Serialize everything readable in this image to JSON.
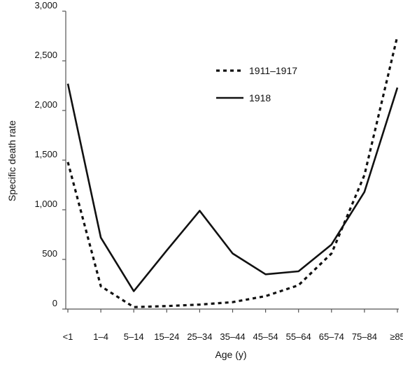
{
  "chart_data": {
    "type": "line",
    "xlabel": "Age (y)",
    "ylabel": "Specific death rate",
    "categories": [
      "<1",
      "1–4",
      "5–14",
      "15–24",
      "25–34",
      "35–44",
      "45–54",
      "55–64",
      "65–74",
      "75–84",
      "≥85"
    ],
    "ylim": [
      0,
      3000
    ],
    "yticks": [
      0,
      500,
      1000,
      1500,
      2000,
      2500,
      3000
    ],
    "ytick_labels": [
      "0",
      "500",
      "1,000",
      "1,500",
      "2,000",
      "2,500",
      "3,000"
    ],
    "legend_position": "top-center",
    "grid": false,
    "series": [
      {
        "name": "1911–1917",
        "style": "dashed",
        "values": [
          1480,
          230,
          20,
          30,
          45,
          70,
          130,
          240,
          560,
          1350,
          2750
        ]
      },
      {
        "name": "1918",
        "style": "solid",
        "values": [
          2270,
          720,
          180,
          590,
          990,
          560,
          350,
          380,
          650,
          1180,
          2230
        ]
      }
    ]
  }
}
